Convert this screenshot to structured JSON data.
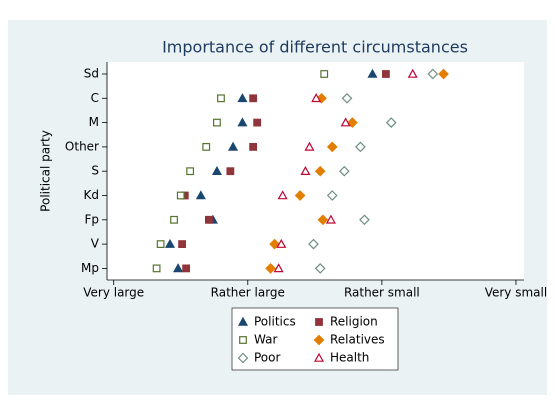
{
  "chart_data": {
    "type": "dot",
    "title": "Importance of different circumstances",
    "y_label": "Political party",
    "categories": [
      "Sd",
      "C",
      "M",
      "Other",
      "S",
      "Kd",
      "Fp",
      "V",
      "Mp"
    ],
    "xlim": [
      0.95,
      4.06
    ],
    "xticks": [
      {
        "value": 1,
        "label": "Very large"
      },
      {
        "value": 2,
        "label": "Rather large"
      },
      {
        "value": 3,
        "label": "Rather small"
      },
      {
        "value": 4,
        "label": "Very small"
      }
    ],
    "grid": false,
    "series": [
      {
        "name": "Politics",
        "color": "#1a476f",
        "marker": "triangle",
        "filled": true,
        "values": [
          2.93,
          1.96,
          1.96,
          1.89,
          1.77,
          1.65,
          1.74,
          1.42,
          1.48
        ]
      },
      {
        "name": "Religion",
        "color": "#90353b",
        "marker": "square",
        "filled": true,
        "values": [
          3.03,
          2.04,
          2.07,
          2.04,
          1.87,
          1.53,
          1.71,
          1.51,
          1.54
        ]
      },
      {
        "name": "War",
        "color": "#55752f",
        "marker": "square",
        "filled": false,
        "values": [
          2.57,
          1.8,
          1.77,
          1.69,
          1.57,
          1.5,
          1.45,
          1.35,
          1.32
        ]
      },
      {
        "name": "Relatives",
        "color": "#e37e00",
        "marker": "diamond",
        "filled": true,
        "values": [
          3.46,
          2.55,
          2.78,
          2.63,
          2.54,
          2.39,
          2.56,
          2.2,
          2.17
        ]
      },
      {
        "name": "Poor",
        "color": "#6e8e84",
        "marker": "diamond",
        "filled": false,
        "values": [
          3.38,
          2.74,
          3.07,
          2.84,
          2.72,
          2.63,
          2.87,
          2.49,
          2.54
        ]
      },
      {
        "name": "Health",
        "color": "#c10534",
        "marker": "triangle",
        "filled": false,
        "values": [
          3.23,
          2.51,
          2.73,
          2.46,
          2.43,
          2.26,
          2.62,
          2.25,
          2.23
        ]
      }
    ]
  }
}
